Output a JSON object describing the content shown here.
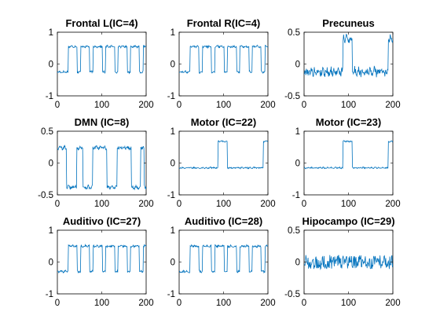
{
  "chart_data": [
    {
      "type": "line",
      "title": "Frontal L(IC=4)",
      "xlabel": "",
      "ylabel": "",
      "xlim": [
        0,
        200
      ],
      "ylim": [
        -1,
        1
      ],
      "xticks": [
        0,
        100,
        200
      ],
      "yticks": [
        -1,
        0,
        1
      ],
      "xtick_labels": [
        "0",
        "100",
        "200"
      ],
      "ytick_labels": [
        "-1",
        "0",
        "1"
      ],
      "line_color": "#0072BD",
      "series": [
        {
          "pattern": "block",
          "low": -0.25,
          "high": 0.55,
          "on_intervals": [
            [
              25,
              44
            ],
            [
              53,
              72
            ],
            [
              81,
              101
            ],
            [
              109,
              129
            ],
            [
              137,
              157
            ],
            [
              165,
              184
            ],
            [
              194,
              200
            ]
          ],
          "noise": 0.03
        }
      ]
    },
    {
      "type": "line",
      "title": "Frontal R(IC=4)",
      "xlabel": "",
      "ylabel": "",
      "xlim": [
        0,
        200
      ],
      "ylim": [
        -1,
        1
      ],
      "xticks": [
        0,
        100,
        200
      ],
      "yticks": [
        -1,
        0,
        1
      ],
      "xtick_labels": [
        "0",
        "100",
        "200"
      ],
      "ytick_labels": [
        "-1",
        "0",
        "1"
      ],
      "line_color": "#0072BD",
      "series": [
        {
          "pattern": "block",
          "low": -0.25,
          "high": 0.55,
          "on_intervals": [
            [
              25,
              44
            ],
            [
              53,
              72
            ],
            [
              81,
              101
            ],
            [
              109,
              129
            ],
            [
              137,
              157
            ],
            [
              165,
              184
            ],
            [
              194,
              200
            ]
          ],
          "noise": 0.03
        }
      ]
    },
    {
      "type": "line",
      "title": "Precuneus",
      "xlabel": "",
      "ylabel": "",
      "xlim": [
        0,
        200
      ],
      "ylim": [
        -0.5,
        0.5
      ],
      "xticks": [
        0,
        100,
        200
      ],
      "yticks": [
        -0.5,
        0,
        0.5
      ],
      "xtick_labels": [
        "0",
        "100",
        "200"
      ],
      "ytick_labels": [
        "-0.5",
        "0",
        "0.5"
      ],
      "line_color": "#0072BD",
      "series": [
        {
          "pattern": "block",
          "low": -0.12,
          "high": 0.4,
          "on_intervals": [
            [
              88,
              108
            ],
            [
              190,
              200
            ]
          ],
          "noise": 0.06
        }
      ]
    },
    {
      "type": "line",
      "title": "DMN (IC=8)",
      "xlabel": "",
      "ylabel": "",
      "xlim": [
        0,
        200
      ],
      "ylim": [
        -0.5,
        0.5
      ],
      "xticks": [
        0,
        100,
        200
      ],
      "yticks": [
        -0.5,
        0,
        0.5
      ],
      "xtick_labels": [
        "0",
        "100",
        "200"
      ],
      "ytick_labels": [
        "-0.5",
        "0",
        "0.5"
      ],
      "line_color": "#0072BD",
      "series": [
        {
          "pattern": "block",
          "low": -0.38,
          "high": 0.24,
          "on_intervals": [
            [
              0,
              20
            ],
            [
              44,
              57
            ],
            [
              80,
              111
            ],
            [
              135,
              166
            ],
            [
              188,
              195
            ]
          ],
          "noise": 0.025
        }
      ]
    },
    {
      "type": "line",
      "title": "Motor (IC=22)",
      "xlabel": "",
      "ylabel": "",
      "xlim": [
        0,
        200
      ],
      "ylim": [
        -1,
        1
      ],
      "xticks": [
        0,
        100,
        200
      ],
      "yticks": [
        -1,
        0,
        1
      ],
      "xtick_labels": [
        "0",
        "100",
        "200"
      ],
      "ytick_labels": [
        "-1",
        "0",
        "1"
      ],
      "line_color": "#0072BD",
      "series": [
        {
          "pattern": "block",
          "low": -0.15,
          "high": 0.68,
          "on_intervals": [
            [
              88,
              108
            ],
            [
              190,
              200
            ]
          ],
          "noise": 0.02
        }
      ]
    },
    {
      "type": "line",
      "title": "Motor (IC=23)",
      "xlabel": "",
      "ylabel": "",
      "xlim": [
        0,
        200
      ],
      "ylim": [
        -1,
        1
      ],
      "xticks": [
        0,
        100,
        200
      ],
      "yticks": [
        -1,
        0,
        1
      ],
      "xtick_labels": [
        "0",
        "100",
        "200"
      ],
      "ytick_labels": [
        "-1",
        "0",
        "1"
      ],
      "line_color": "#0072BD",
      "series": [
        {
          "pattern": "block",
          "low": -0.15,
          "high": 0.68,
          "on_intervals": [
            [
              88,
              108
            ],
            [
              190,
              200
            ]
          ],
          "noise": 0.02
        }
      ]
    },
    {
      "type": "line",
      "title": "Auditivo (IC=27)",
      "xlabel": "",
      "ylabel": "",
      "xlim": [
        0,
        200
      ],
      "ylim": [
        -1,
        1
      ],
      "xticks": [
        0,
        100,
        200
      ],
      "yticks": [
        -1,
        0,
        1
      ],
      "xtick_labels": [
        "0",
        "100",
        "200"
      ],
      "ytick_labels": [
        "-1",
        "0",
        "1"
      ],
      "line_color": "#0072BD",
      "series": [
        {
          "pattern": "block",
          "low": -0.3,
          "high": 0.5,
          "on_intervals": [
            [
              25,
              44
            ],
            [
              53,
              72
            ],
            [
              81,
              101
            ],
            [
              109,
              129
            ],
            [
              137,
              157
            ],
            [
              165,
              184
            ],
            [
              194,
              200
            ]
          ],
          "noise": 0.03
        }
      ]
    },
    {
      "type": "line",
      "title": "Auditivo (IC=28)",
      "xlabel": "",
      "ylabel": "",
      "xlim": [
        0,
        200
      ],
      "ylim": [
        -1,
        1
      ],
      "xticks": [
        0,
        100,
        200
      ],
      "yticks": [
        -1,
        0,
        1
      ],
      "xtick_labels": [
        "0",
        "100",
        "200"
      ],
      "ytick_labels": [
        "-1",
        "0",
        "1"
      ],
      "line_color": "#0072BD",
      "series": [
        {
          "pattern": "block",
          "low": -0.3,
          "high": 0.5,
          "on_intervals": [
            [
              25,
              44
            ],
            [
              53,
              72
            ],
            [
              81,
              101
            ],
            [
              109,
              129
            ],
            [
              137,
              157
            ],
            [
              165,
              184
            ],
            [
              194,
              200
            ]
          ],
          "noise": 0.03
        }
      ]
    },
    {
      "type": "line",
      "title": "Hipocampo (IC=29)",
      "xlabel": "",
      "ylabel": "",
      "xlim": [
        0,
        200
      ],
      "ylim": [
        -0.5,
        0.5
      ],
      "xticks": [
        0,
        100,
        200
      ],
      "yticks": [
        -0.5,
        0,
        0.5
      ],
      "xtick_labels": [
        "0",
        "100",
        "200"
      ],
      "ytick_labels": [
        "-0.5",
        "0",
        "0.5"
      ],
      "line_color": "#0072BD",
      "series": [
        {
          "pattern": "noise",
          "low": 0.0,
          "high": 0.0,
          "on_intervals": [],
          "noise": 0.11
        }
      ]
    }
  ]
}
